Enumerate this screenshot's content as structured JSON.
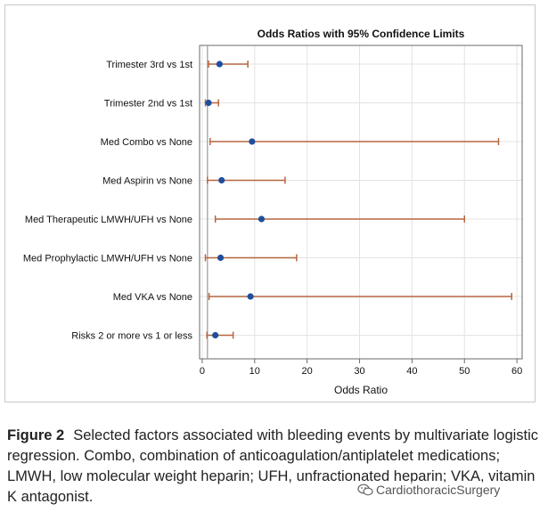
{
  "chart_data": {
    "type": "forest",
    "title": "Odds Ratios with 95% Confidence Limits",
    "xlabel": "Odds Ratio",
    "ylabel": "",
    "xlim": [
      -0.5,
      61
    ],
    "xticks": [
      0,
      10,
      20,
      30,
      40,
      50,
      60
    ],
    "xtick_labels": [
      "0",
      "10",
      "20",
      "30",
      "40",
      "50",
      "60"
    ],
    "reference_line": 1,
    "grid": true,
    "rows": [
      {
        "label": "Trimester 3rd vs 1st",
        "or": 3.3,
        "lower": 1.2,
        "upper": 8.7
      },
      {
        "label": "Trimester 2nd vs 1st",
        "or": 1.2,
        "lower": 0.6,
        "upper": 3.1
      },
      {
        "label": "Med Combo vs None",
        "or": 9.5,
        "lower": 1.5,
        "upper": 56.5
      },
      {
        "label": "Med Aspirin vs None",
        "or": 3.7,
        "lower": 1.0,
        "upper": 15.8
      },
      {
        "label": "Med Therapeutic LMWH/UFH vs None",
        "or": 11.3,
        "lower": 2.5,
        "upper": 50.0
      },
      {
        "label": "Med Prophylactic LMWH/UFH vs None",
        "or": 3.5,
        "lower": 0.6,
        "upper": 18.0
      },
      {
        "label": "Med VKA vs None",
        "or": 9.2,
        "lower": 1.3,
        "upper": 59.0
      },
      {
        "label": "Risks 2 or more vs 1 or less",
        "or": 2.5,
        "lower": 0.9,
        "upper": 5.9
      }
    ],
    "colors": {
      "point": "#1f4e9b",
      "interval": "#b5663f",
      "grid": "#e3e3e3",
      "reference": "#9a9a9a",
      "axis": "#6a6a6a"
    }
  },
  "caption": {
    "label": "Figure 2",
    "text": "Selected factors associated with bleeding events by multivariate logistic regression. Combo, combination of anticoagulation/antiplatelet medications; LMWH, low molecular weight heparin; UFH, unfractionated heparin; VKA, vitamin K antagonist."
  },
  "watermark": {
    "text": "CardiothoracicSurgery",
    "icon": "wechat-icon"
  }
}
